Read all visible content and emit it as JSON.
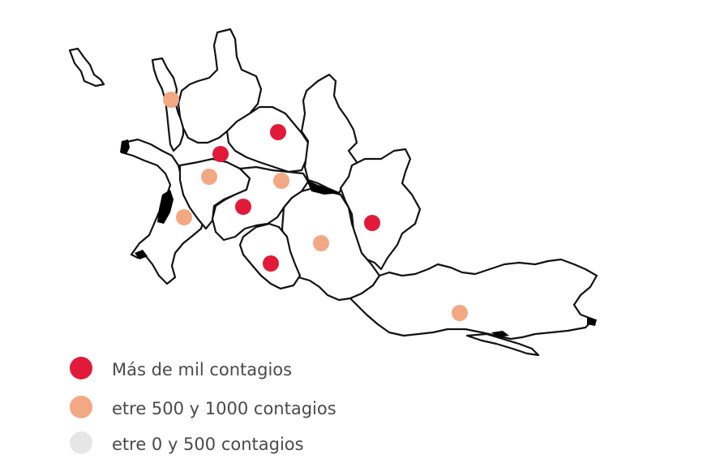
{
  "colors": {
    "high": "#e21a3a",
    "mid": "#f2a883",
    "low": "#e6e6e6",
    "outline": "#111111"
  },
  "legend": [
    {
      "level": "high",
      "label": "Más de mil contagios"
    },
    {
      "level": "mid",
      "label": "etre 500 y 1000 contagios"
    },
    {
      "level": "low",
      "label": "etre 0 y 500 contagios"
    }
  ],
  "markers": [
    {
      "level": "mid"
    },
    {
      "level": "high"
    },
    {
      "level": "high"
    },
    {
      "level": "mid"
    },
    {
      "level": "mid"
    },
    {
      "level": "high"
    },
    {
      "level": "mid"
    },
    {
      "level": "high"
    },
    {
      "level": "mid"
    },
    {
      "level": "high"
    },
    {
      "level": "mid"
    }
  ]
}
